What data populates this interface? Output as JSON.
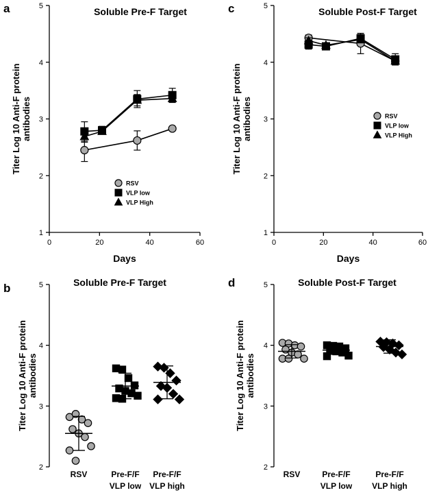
{
  "chart_data": [
    {
      "panel": "a",
      "type": "line",
      "title": "Soluble Pre-F Target",
      "xlabel": "Days",
      "ylabel": [
        "Titer Log 10 Anti-F protein",
        "antibodies"
      ],
      "xlim": [
        0,
        60
      ],
      "ylim": [
        1,
        5
      ],
      "xticks": [
        0,
        20,
        40,
        60
      ],
      "yticks": [
        1,
        2,
        3,
        4,
        5
      ],
      "legend_position": "center-bottom",
      "series": [
        {
          "name": "RSV",
          "marker": "circle",
          "x": [
            14,
            35,
            49
          ],
          "y": [
            2.45,
            2.62,
            2.83
          ],
          "err": [
            0.2,
            0.17,
            0.03
          ]
        },
        {
          "name": "VLP low",
          "marker": "square",
          "x": [
            14,
            21,
            35,
            49
          ],
          "y": [
            2.78,
            2.8,
            3.35,
            3.42
          ],
          "err": [
            0.17,
            0.07,
            0.15,
            0.12
          ]
        },
        {
          "name": "VLP High",
          "marker": "triangle",
          "x": [
            14,
            21,
            35,
            49
          ],
          "y": [
            2.69,
            2.78,
            3.33,
            3.36
          ],
          "err": [
            0.1,
            0.05,
            0.1,
            0.07
          ]
        }
      ]
    },
    {
      "panel": "b",
      "type": "scatter",
      "title": "Soluble Pre-F Target",
      "ylabel": [
        "Titer Log 10 Anti-F protein",
        "antibodies"
      ],
      "ylim": [
        2,
        5
      ],
      "yticks": [
        2,
        3,
        4,
        5
      ],
      "groups": [
        {
          "label": [
            "RSV"
          ],
          "marker": "circle",
          "mean": 2.55,
          "sd": 0.28,
          "values": [
            2.82,
            2.87,
            2.78,
            2.72,
            2.62,
            2.55,
            2.49,
            2.34,
            2.27,
            2.1
          ]
        },
        {
          "label": [
            "Pre-F/F",
            "VLP low"
          ],
          "marker": "square",
          "mean": 3.33,
          "sd": 0.21,
          "values": [
            3.62,
            3.6,
            3.46,
            3.34,
            3.29,
            3.25,
            3.21,
            3.17,
            3.13,
            3.12
          ]
        },
        {
          "label": [
            "Pre-F/F",
            "VLP high"
          ],
          "marker": "diamond",
          "mean": 3.39,
          "sd": 0.27,
          "values": [
            3.65,
            3.63,
            3.54,
            3.42,
            3.33,
            3.3,
            3.2,
            3.11,
            3.11
          ]
        }
      ]
    },
    {
      "panel": "c",
      "type": "line",
      "title": "Soluble Post-F Target",
      "xlabel": "Days",
      "ylabel": [
        "Titer Log 10 Anti-F protein",
        "antibodies"
      ],
      "xlim": [
        0,
        60
      ],
      "ylim": [
        1,
        5
      ],
      "xticks": [
        0,
        20,
        40,
        60
      ],
      "yticks": [
        1,
        2,
        3,
        4,
        5
      ],
      "legend_position": "right-middle",
      "series": [
        {
          "name": "RSV",
          "marker": "circle",
          "x": [
            14,
            35,
            49
          ],
          "y": [
            4.43,
            4.33,
            4.02
          ],
          "err": [
            0.05,
            0.18,
            0.07
          ]
        },
        {
          "name": "VLP low",
          "marker": "square",
          "x": [
            14,
            21,
            35,
            49
          ],
          "y": [
            4.31,
            4.28,
            4.42,
            4.05
          ],
          "err": [
            0.08,
            0.05,
            0.07,
            0.1
          ]
        },
        {
          "name": "VLP High",
          "marker": "triangle",
          "x": [
            14,
            21,
            35,
            49
          ],
          "y": [
            4.38,
            4.3,
            4.4,
            4.02
          ],
          "err": [
            0.05,
            0.04,
            0.06,
            0.06
          ]
        }
      ]
    },
    {
      "panel": "d",
      "type": "scatter",
      "title": "Soluble Post-F Target",
      "ylabel": [
        "Titer Log 10 Anti-F protein",
        "antibodies"
      ],
      "ylim": [
        2,
        5
      ],
      "yticks": [
        2,
        3,
        4,
        5
      ],
      "groups": [
        {
          "label": [
            "RSV"
          ],
          "marker": "circle",
          "mean": 3.9,
          "sd": 0.11,
          "values": [
            4.04,
            4.03,
            4.0,
            3.98,
            3.93,
            3.88,
            3.85,
            3.78,
            3.78,
            3.78
          ]
        },
        {
          "label": [
            "Pre-F/F",
            "VLP low"
          ],
          "marker": "square",
          "mean": 3.92,
          "sd": 0.07,
          "values": [
            4.0,
            3.99,
            3.98,
            3.95,
            3.92,
            3.9,
            3.88,
            3.83,
            3.82
          ]
        },
        {
          "label": [
            "Pre-F/F",
            "VLP high"
          ],
          "marker": "diamond",
          "mean": 3.98,
          "sd": 0.11,
          "values": [
            4.06,
            4.05,
            4.03,
            4.0,
            3.97,
            3.93,
            3.88,
            3.85
          ]
        }
      ]
    }
  ]
}
